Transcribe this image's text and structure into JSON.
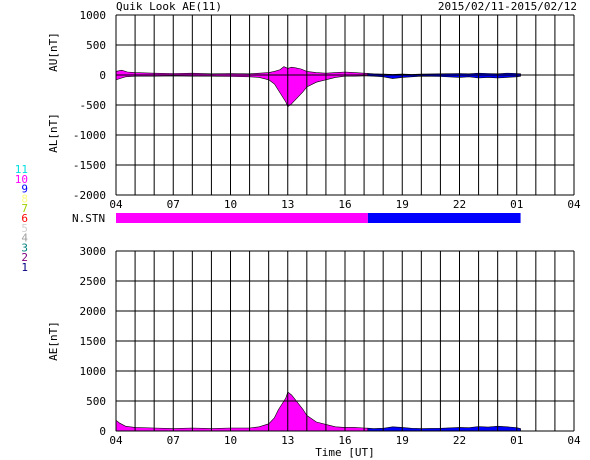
{
  "title": "Quik Look AE(11)",
  "date_range": "2015/02/11-2015/02/12",
  "xlabel": "Time [UT]",
  "station_label": "N.STN",
  "x_ticks": [
    "04",
    "07",
    "10",
    "13",
    "16",
    "19",
    "22",
    "01",
    "04"
  ],
  "colors": {
    "before": "#ff00ff",
    "after": "#0000ff",
    "grid": "#000000",
    "background": "#ffffff"
  },
  "station_legend": [
    {
      "label": "11",
      "color": "#00e0e0"
    },
    {
      "label": "10",
      "color": "#ff00ff"
    },
    {
      "label": "9",
      "color": "#0000ff"
    },
    {
      "label": "8",
      "color": "#ffff80"
    },
    {
      "label": "7",
      "color": "#a0d000"
    },
    {
      "label": "6",
      "color": "#ff0000"
    },
    {
      "label": "5",
      "color": "#d0d0d0"
    },
    {
      "label": "4",
      "color": "#a0a0a0"
    },
    {
      "label": "3",
      "color": "#008080"
    },
    {
      "label": "2",
      "color": "#800080"
    },
    {
      "label": "1",
      "color": "#000080"
    }
  ],
  "chart_data": [
    {
      "type": "area",
      "panel": "AU/AL",
      "ylabel_top": "AU[nT]",
      "ylabel_bottom": "AL[nT]",
      "xlim_hours_ut": [
        4,
        28
      ],
      "ylim": [
        -2000,
        1000
      ],
      "y_ticks": [
        "1000",
        "500",
        "0",
        "-500",
        "-1000",
        "-1500",
        "-2000"
      ],
      "grid": true,
      "color_change_at_hour": 17.2,
      "data_end_hour": 25.2,
      "series": [
        {
          "name": "AU",
          "x": [
            4.0,
            4.3,
            4.6,
            5.0,
            6.0,
            7.0,
            8.0,
            9.0,
            10.0,
            11.0,
            11.5,
            12.0,
            12.3,
            12.6,
            12.8,
            13.0,
            13.2,
            13.4,
            13.7,
            14.0,
            14.5,
            15.0,
            15.5,
            16.0,
            16.5,
            17.0,
            17.5,
            18.0,
            18.5,
            19.0,
            19.5,
            20.0,
            21.0,
            22.0,
            22.5,
            23.0,
            23.5,
            24.0,
            24.5,
            25.0,
            25.2
          ],
          "values": [
            60,
            80,
            50,
            40,
            30,
            25,
            30,
            20,
            25,
            20,
            30,
            40,
            60,
            90,
            140,
            110,
            130,
            120,
            100,
            60,
            40,
            30,
            40,
            50,
            40,
            30,
            20,
            15,
            10,
            15,
            10,
            15,
            20,
            25,
            20,
            30,
            25,
            20,
            30,
            25,
            20
          ]
        },
        {
          "name": "AL",
          "x": [
            4.0,
            4.2,
            4.5,
            5.0,
            6.0,
            7.0,
            8.0,
            9.0,
            10.0,
            11.0,
            11.5,
            12.0,
            12.3,
            12.5,
            12.7,
            12.9,
            13.0,
            13.2,
            13.5,
            13.8,
            14.0,
            14.5,
            15.0,
            15.5,
            16.0,
            16.5,
            17.0,
            17.5,
            18.0,
            18.5,
            19.0,
            19.5,
            20.0,
            21.0,
            22.0,
            22.5,
            23.0,
            23.5,
            24.0,
            24.5,
            25.0,
            25.2
          ],
          "values": [
            -80,
            -60,
            -30,
            -20,
            -20,
            -15,
            -20,
            -20,
            -25,
            -30,
            -40,
            -80,
            -150,
            -250,
            -350,
            -450,
            -530,
            -480,
            -380,
            -280,
            -200,
            -120,
            -80,
            -40,
            -20,
            -20,
            -15,
            -20,
            -30,
            -60,
            -40,
            -30,
            -20,
            -25,
            -40,
            -30,
            -50,
            -40,
            -50,
            -40,
            -30,
            -20
          ]
        }
      ]
    },
    {
      "type": "area",
      "panel": "AE",
      "ylabel": "AE[nT]",
      "xlim_hours_ut": [
        4,
        28
      ],
      "ylim": [
        0,
        3000
      ],
      "y_ticks": [
        "3000",
        "2500",
        "2000",
        "1500",
        "1000",
        "500",
        "0"
      ],
      "grid": true,
      "color_change_at_hour": 17.2,
      "data_end_hour": 25.2,
      "series": [
        {
          "name": "AE",
          "x": [
            4.0,
            4.2,
            4.5,
            5.0,
            6.0,
            7.0,
            8.0,
            9.0,
            10.0,
            11.0,
            11.5,
            12.0,
            12.3,
            12.5,
            12.7,
            12.9,
            13.0,
            13.2,
            13.5,
            13.8,
            14.0,
            14.5,
            15.0,
            15.5,
            16.0,
            16.5,
            17.0,
            17.5,
            18.0,
            18.5,
            19.0,
            19.5,
            20.0,
            21.0,
            22.0,
            22.5,
            23.0,
            23.5,
            24.0,
            24.5,
            25.0,
            25.2
          ],
          "values": [
            180,
            130,
            80,
            60,
            50,
            40,
            50,
            40,
            50,
            50,
            70,
            120,
            220,
            350,
            450,
            550,
            650,
            600,
            480,
            360,
            260,
            150,
            110,
            70,
            60,
            60,
            50,
            40,
            45,
            70,
            60,
            45,
            40,
            45,
            60,
            55,
            75,
            65,
            80,
            70,
            55,
            40
          ]
        }
      ]
    }
  ]
}
